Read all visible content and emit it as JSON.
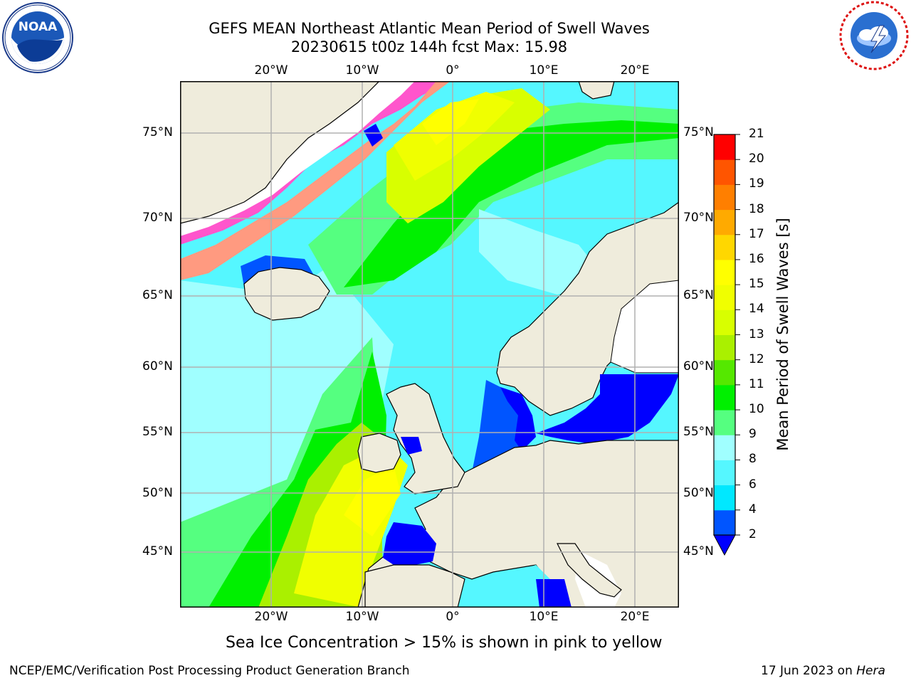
{
  "header": {
    "title_line1": "GEFS MEAN Northeast Atlantic Mean Period of Swell Waves",
    "title_line2": "20230615 t00z 144h fcst   Max: 15.98"
  },
  "logos": {
    "left": {
      "text": "NOAA"
    },
    "right": {
      "icon": "national-weather-service-logo"
    }
  },
  "map": {
    "lon_labels": [
      "20°W",
      "10°W",
      "0°",
      "10°E",
      "20°E"
    ],
    "lat_labels": [
      "75°N",
      "70°N",
      "65°N",
      "60°N",
      "55°N",
      "50°N",
      "45°N"
    ],
    "colors": {
      "land": "#efecdc",
      "ice_white": "#ffffff",
      "grid": "#b0b0b0"
    }
  },
  "colorbar": {
    "label": "Mean Period of Swell Waves [s]",
    "ticks": [
      "2",
      "4",
      "6",
      "8",
      "9",
      "10",
      "11",
      "12",
      "13",
      "14",
      "15",
      "16",
      "17",
      "18",
      "19",
      "20",
      "21"
    ],
    "colors": [
      "#0055ff",
      "#00e8ff",
      "#55f7ff",
      "#a0ffff",
      "#55ff80",
      "#00f000",
      "#55e800",
      "#aaf000",
      "#d8ff00",
      "#f0ff00",
      "#ffff00",
      "#ffd700",
      "#ffaa00",
      "#ff7f00",
      "#ff5500",
      "#ff2a00",
      "#ff0000"
    ],
    "under_color": "#0000ff"
  },
  "footnote": "Sea Ice Concentration > 15% is shown in pink to yellow",
  "footer": {
    "left": "NCEP/EMC/Verification Post Processing Product Generation Branch",
    "right_prefix": "17 Jun 2023 on ",
    "right_host": "Hera"
  }
}
